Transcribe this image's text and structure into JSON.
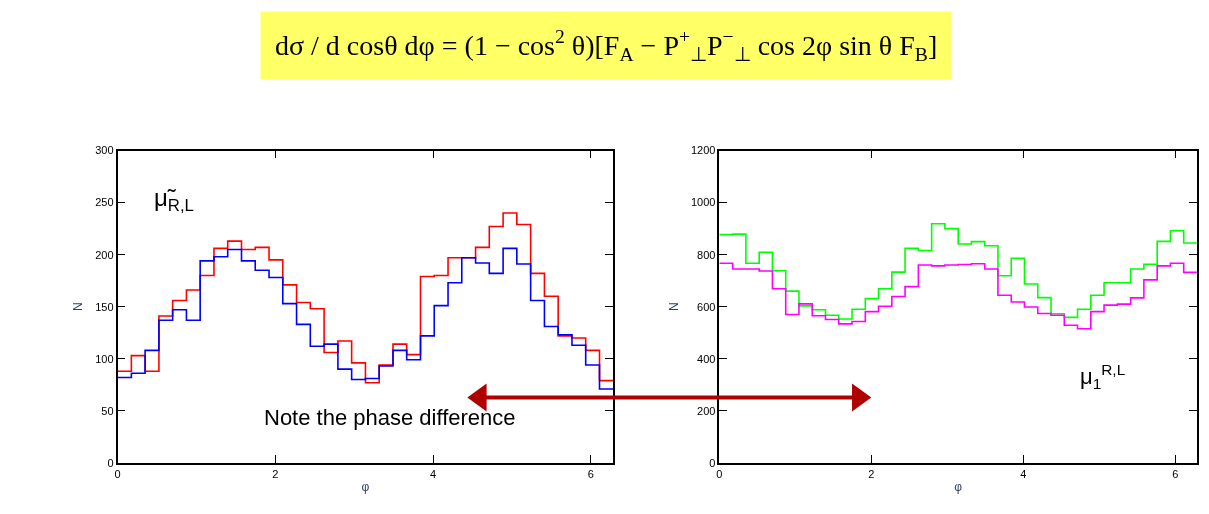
{
  "chart_data": [
    {
      "type": "histogram",
      "title": "dσ / d cosθ dφ = (1 − cos$^{2}$ θ)[F$_{A}$ − P$^{+}$$_{⊥}$P$^{−}$$_{⊥}$ cos 2φ sin θ F$_{B}$]",
      "xlabel": "φ",
      "ylabel": "N",
      "bins": [
        0,
        0.175,
        0.349,
        0.524,
        0.698,
        0.873,
        1.047,
        1.222,
        1.396,
        1.571,
        1.745,
        1.92,
        2.094,
        2.269,
        2.443,
        2.618,
        2.793,
        2.967,
        3.142,
        3.316,
        3.491,
        3.665,
        3.84,
        4.014,
        4.189,
        4.363,
        4.538,
        4.712,
        4.887,
        5.061,
        5.236,
        5.411,
        5.585,
        5.76,
        5.934,
        6.109,
        6.283
      ],
      "series": [
        {
          "color": "#ff0000",
          "values": [
            88,
            103,
            88,
            141,
            156,
            166,
            180,
            206,
            213,
            205,
            207,
            195,
            171,
            154,
            148,
            106,
            117,
            96,
            77,
            94,
            114,
            104,
            179,
            180,
            197,
            197,
            207,
            227,
            240,
            229,
            182,
            160,
            122,
            120,
            108,
            79
          ]
        },
        {
          "color": "#0000ff",
          "values": [
            82,
            86,
            108,
            137,
            147,
            137,
            194,
            198,
            205,
            194,
            185,
            178,
            153,
            133,
            112,
            114,
            90,
            80,
            81,
            93,
            108,
            99,
            122,
            151,
            173,
            197,
            192,
            182,
            206,
            191,
            156,
            131,
            123,
            113,
            94,
            71
          ]
        }
      ],
      "xlim": [
        0,
        6.283
      ],
      "xticks": [
        0,
        2,
        4,
        6
      ],
      "ylim": [
        0,
        300
      ],
      "yticks": [
        0,
        50,
        100,
        150,
        200,
        250,
        300
      ],
      "annotations": [
        "μ̃$_{R,L}$",
        "Note the phase difference"
      ]
    },
    {
      "type": "histogram",
      "xlabel": "φ",
      "ylabel": "N",
      "bins": [
        0,
        0.175,
        0.349,
        0.524,
        0.698,
        0.873,
        1.047,
        1.222,
        1.396,
        1.571,
        1.745,
        1.92,
        2.094,
        2.269,
        2.443,
        2.618,
        2.793,
        2.967,
        3.142,
        3.316,
        3.491,
        3.665,
        3.84,
        4.014,
        4.189,
        4.363,
        4.538,
        4.712,
        4.887,
        5.061,
        5.236,
        5.411,
        5.585,
        5.76,
        5.934,
        6.109,
        6.283
      ],
      "series": [
        {
          "color": "#00ff00",
          "values": [
            877,
            879,
            767,
            809,
            738,
            660,
            603,
            588,
            567,
            553,
            590,
            631,
            669,
            733,
            824,
            816,
            919,
            900,
            841,
            850,
            834,
            719,
            786,
            687,
            635,
            573,
            559,
            590,
            644,
            692,
            692,
            745,
            763,
            851,
            892,
            845
          ]
        },
        {
          "color": "#ff00ff",
          "values": [
            767,
            745,
            745,
            737,
            669,
            570,
            611,
            565,
            551,
            534,
            543,
            581,
            602,
            639,
            677,
            760,
            757,
            760,
            762,
            765,
            745,
            644,
            618,
            599,
            574,
            567,
            529,
            515,
            581,
            606,
            610,
            634,
            703,
            757,
            767,
            732
          ]
        }
      ],
      "xlim": [
        0,
        6.283
      ],
      "xticks": [
        0,
        2,
        4,
        6
      ],
      "ylim": [
        0,
        1200
      ],
      "yticks": [
        0,
        200,
        400,
        600,
        800,
        1000,
        1200
      ],
      "annotations": [
        "μ$_{1}$$^{R,L}$"
      ]
    }
  ]
}
